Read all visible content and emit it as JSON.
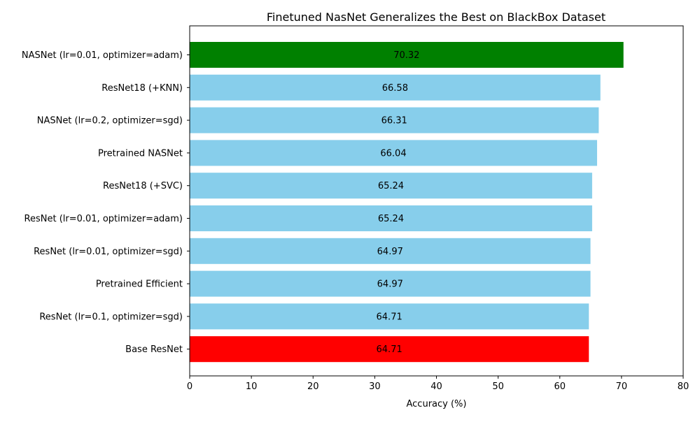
{
  "chart_data": {
    "type": "bar",
    "orientation": "horizontal",
    "title": "Finetuned NasNet Generalizes the Best on BlackBox Dataset",
    "xlabel": "Accuracy (%)",
    "ylabel": "",
    "xlim": [
      0,
      80
    ],
    "xticks": [
      0,
      10,
      20,
      30,
      40,
      50,
      60,
      70,
      80
    ],
    "grid": false,
    "categories": [
      "NASNet (lr=0.01, optimizer=adam)",
      "ResNet18 (+KNN)",
      "NASNet (lr=0.2, optimizer=sgd)",
      "Pretrained NASNet",
      "ResNet18 (+SVC)",
      "ResNet (lr=0.01, optimizer=adam)",
      "ResNet (lr=0.01, optimizer=sgd)",
      "Pretrained Efficient",
      "ResNet (lr=0.1, optimizer=sgd)",
      "Base ResNet"
    ],
    "values": [
      70.32,
      66.58,
      66.31,
      66.04,
      65.24,
      65.24,
      64.97,
      64.97,
      64.71,
      64.71
    ],
    "value_labels": [
      "70.32",
      "66.58",
      "66.31",
      "66.04",
      "65.24",
      "65.24",
      "64.97",
      "64.97",
      "64.71",
      "64.71"
    ],
    "colors": [
      "#008000",
      "#87ceeb",
      "#87ceeb",
      "#87ceeb",
      "#87ceeb",
      "#87ceeb",
      "#87ceeb",
      "#87ceeb",
      "#87ceeb",
      "#ff0000"
    ]
  }
}
